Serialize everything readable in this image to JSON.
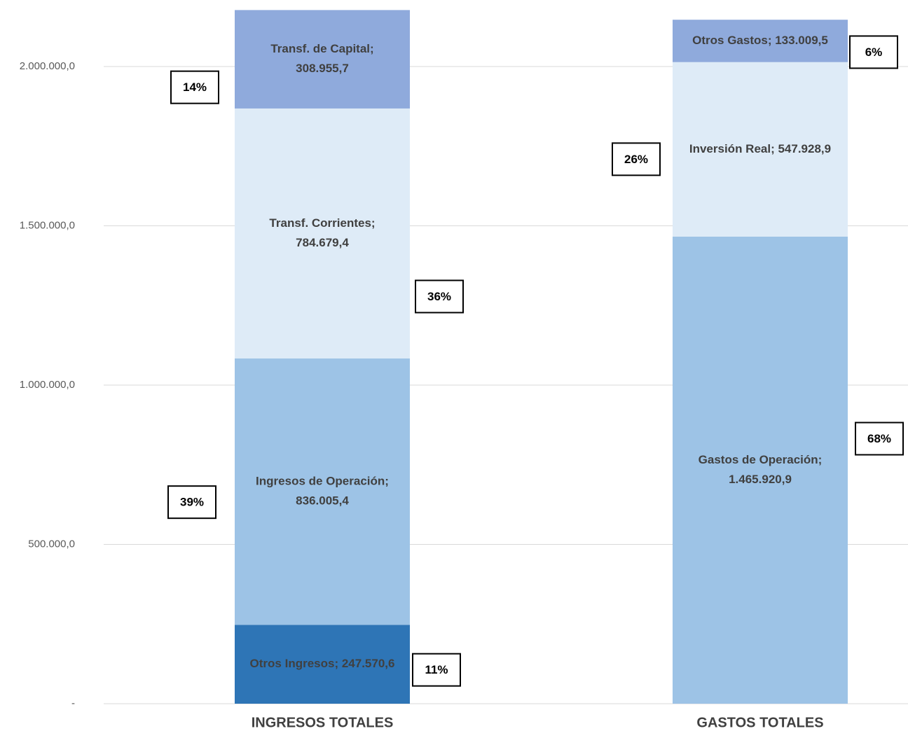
{
  "chart_data": {
    "type": "stacked_bar",
    "categories": [
      "INGRESOS TOTALES",
      "GASTOS TOTALES"
    ],
    "ylim": [
      0,
      2200000
    ],
    "yticks": [
      {
        "value": 0,
        "label": "-"
      },
      {
        "value": 500000,
        "label": "500.000,0"
      },
      {
        "value": 1000000,
        "label": "1.000.000,0"
      },
      {
        "value": 1500000,
        "label": "1.500.000,0"
      },
      {
        "value": 2000000,
        "label": "2.000.000,0"
      }
    ],
    "grid": true,
    "series": [
      {
        "color": "#2e75b6",
        "values": [
          247570.6,
          null
        ],
        "value_labels": [
          [
            "Otros Ingresos;  247.570,6"
          ],
          null
        ],
        "shares": [
          11,
          null
        ],
        "share_labels": [
          "11%",
          null
        ]
      },
      {
        "color": "#9dc3e6",
        "values": [
          836005.4,
          null
        ],
        "value_labels": [
          [
            "Ingresos de Operación;",
            "836.005,4"
          ],
          null
        ],
        "shares": [
          39,
          null
        ],
        "share_labels": [
          "39%",
          null
        ]
      },
      {
        "color": "#deebf7",
        "values": [
          784679.4,
          null
        ],
        "value_labels": [
          [
            "Transf. Corrientes;",
            "784.679,4"
          ],
          null
        ],
        "shares": [
          36,
          null
        ],
        "share_labels": [
          "36%",
          null
        ]
      },
      {
        "color": "#8faadc",
        "values": [
          308955.7,
          null
        ],
        "value_labels": [
          [
            "Transf. de Capital;",
            "308.955,7"
          ],
          null
        ],
        "shares": [
          14,
          null
        ],
        "share_labels": [
          "14%",
          null
        ]
      },
      {
        "color": "#9dc3e6",
        "values": [
          null,
          1465920.9
        ],
        "value_labels": [
          null,
          [
            "Gastos de Operación;",
            "1.465.920,9"
          ]
        ],
        "shares": [
          null,
          68
        ],
        "share_labels": [
          null,
          "68%"
        ]
      },
      {
        "color": "#deebf7",
        "values": [
          null,
          547928.9
        ],
        "value_labels": [
          null,
          [
            "Inversión Real; 547.928,9"
          ]
        ],
        "shares": [
          null,
          26
        ],
        "share_labels": [
          null,
          "26%"
        ]
      },
      {
        "color": "#8faadc",
        "values": [
          null,
          133009.5
        ],
        "value_labels": [
          null,
          [
            "Otros Gastos; 133.009,5"
          ]
        ],
        "shares": [
          null,
          6
        ],
        "share_labels": [
          null,
          "6%"
        ]
      }
    ]
  }
}
